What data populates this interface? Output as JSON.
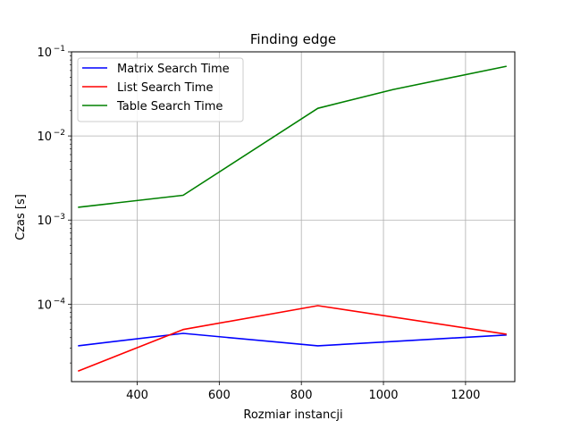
{
  "chart_data": {
    "type": "line",
    "title": "Finding edge",
    "xlabel": "Rozmiar instancji",
    "ylabel": "Czas [s]",
    "yscale": "log",
    "xlim": [
      240,
      1320
    ],
    "ylim": [
      1.2e-05,
      0.1
    ],
    "grid": true,
    "legend_position": "top-left",
    "x_ticks": [
      {
        "value": 400,
        "label": "400"
      },
      {
        "value": 600,
        "label": "600"
      },
      {
        "value": 800,
        "label": "800"
      },
      {
        "value": 1000,
        "label": "1000"
      },
      {
        "value": 1200,
        "label": "1200"
      }
    ],
    "y_ticks": [
      {
        "value": 0.0001,
        "base": "10",
        "exp": "−4"
      },
      {
        "value": 0.001,
        "base": "10",
        "exp": "−3"
      },
      {
        "value": 0.01,
        "base": "10",
        "exp": "−2"
      },
      {
        "value": 0.1,
        "base": "10",
        "exp": "−1"
      }
    ],
    "series": [
      {
        "name": "Matrix Search Time",
        "color": "#0000ff",
        "x": [
          256,
          512,
          840,
          1300
        ],
        "y": [
          3.2e-05,
          4.5e-05,
          3.2e-05,
          4.3e-05
        ]
      },
      {
        "name": "List Search Time",
        "color": "#ff0000",
        "x": [
          256,
          512,
          840,
          1300
        ],
        "y": [
          1.6e-05,
          5e-05,
          9.6e-05,
          4.4e-05
        ]
      },
      {
        "name": "Table Search Time",
        "color": "#008000",
        "x": [
          256,
          512,
          840,
          1024,
          1300
        ],
        "y": [
          0.00142,
          0.00197,
          0.0213,
          0.0357,
          0.0674
        ]
      }
    ]
  }
}
